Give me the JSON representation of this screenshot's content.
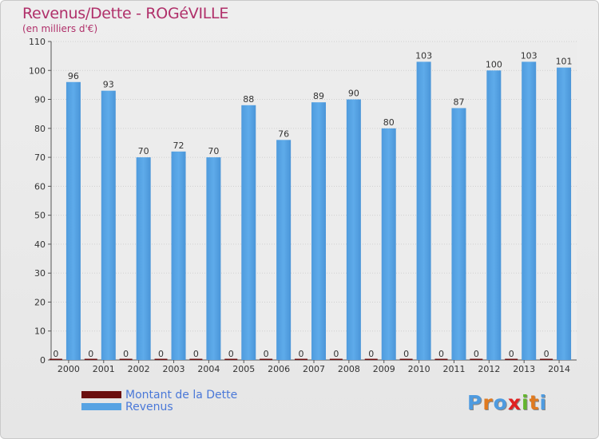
{
  "title": "Revenus/Dette - ROGéVILLE",
  "subtitle": "(en milliers d'€)",
  "logo": {
    "letters": [
      "P",
      "r",
      "o",
      "x",
      "i",
      "t",
      "i"
    ],
    "colors": [
      "#4e9be0",
      "#e07a1f",
      "#4e9be0",
      "#e02020",
      "#63b52d",
      "#e07a1f",
      "#4e9be0"
    ]
  },
  "colors": {
    "revenus": "#57a3e3",
    "dette": "#6b1010",
    "axis_text": "#333333",
    "grid": "#cfcfcf"
  },
  "chart_data": {
    "type": "bar",
    "title": "Revenus/Dette - ROGéVILLE",
    "subtitle": "(en milliers d'€)",
    "categories": [
      "2000",
      "2001",
      "2002",
      "2003",
      "2004",
      "2005",
      "2006",
      "2007",
      "2008",
      "2009",
      "2010",
      "2011",
      "2012",
      "2013",
      "2014"
    ],
    "series": [
      {
        "name": "Montant de la Dette",
        "color": "#6b1010",
        "values": [
          0,
          0,
          0,
          0,
          0,
          0,
          0,
          0,
          0,
          0,
          0,
          0,
          0,
          0,
          0
        ]
      },
      {
        "name": "Revenus",
        "color": "#57a3e3",
        "values": [
          96,
          93,
          70,
          72,
          70,
          88,
          76,
          89,
          90,
          80,
          103,
          87,
          100,
          103,
          101
        ]
      }
    ],
    "ylim": [
      0,
      110
    ],
    "yticks": [
      0,
      10,
      20,
      30,
      40,
      50,
      60,
      70,
      80,
      90,
      100,
      110
    ],
    "grid": true,
    "legend": "bottom-left"
  }
}
